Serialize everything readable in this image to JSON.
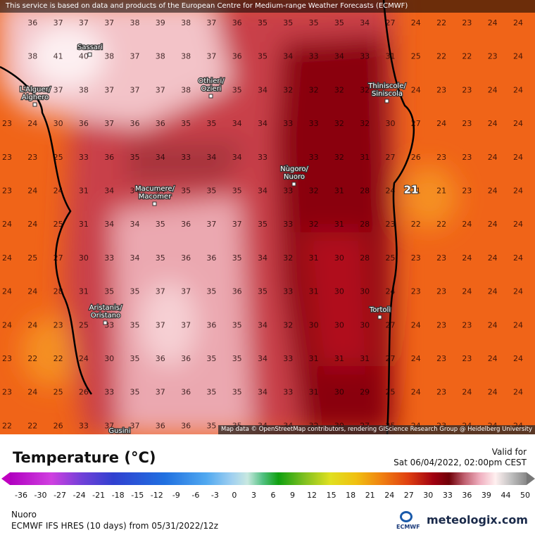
{
  "banner": "This service is based on data and products of the European Centre for Medium-range Weather Forecasts (ECMWF)",
  "attribution": "Map data © OpenStreetMap contributors, rendering GIScience Research Group @ Heidelberg University",
  "places": [
    {
      "lines": [
        "Sassari"
      ]
    },
    {
      "lines": [
        "L'Alguer/",
        "Alghero"
      ]
    },
    {
      "lines": [
        "Othieri/",
        "Ozieri"
      ]
    },
    {
      "lines": [
        "Macumere/",
        "Macomer"
      ]
    },
    {
      "lines": [
        "Nùgoro/",
        "Nuoro"
      ]
    },
    {
      "lines": [
        "Thiniscole/",
        "Siniscola"
      ]
    },
    {
      "lines": [
        "Aristanis/",
        "Oristano"
      ]
    },
    {
      "lines": [
        "Tortolì"
      ]
    },
    {
      "lines": [
        "Gusini"
      ]
    }
  ],
  "highlight": 21,
  "grid": [
    [
      null,
      36,
      37,
      37,
      37,
      38,
      39,
      38,
      37,
      36,
      35,
      35,
      35,
      35,
      34,
      27,
      24,
      22,
      23,
      24,
      24
    ],
    [
      null,
      38,
      41,
      40,
      38,
      37,
      38,
      38,
      37,
      36,
      35,
      34,
      33,
      34,
      33,
      31,
      25,
      22,
      22,
      23,
      24
    ],
    [
      null,
      37,
      37,
      38,
      37,
      37,
      37,
      38,
      null,
      35,
      34,
      32,
      32,
      32,
      32,
      null,
      24,
      23,
      23,
      24,
      24
    ],
    [
      23,
      24,
      30,
      36,
      37,
      36,
      36,
      35,
      35,
      34,
      34,
      33,
      33,
      32,
      32,
      30,
      27,
      24,
      23,
      24,
      24
    ],
    [
      23,
      23,
      25,
      33,
      36,
      35,
      34,
      33,
      34,
      34,
      33,
      null,
      33,
      32,
      31,
      27,
      26,
      23,
      23,
      24,
      24
    ],
    [
      23,
      24,
      24,
      31,
      34,
      34,
      34,
      35,
      35,
      35,
      34,
      33,
      32,
      31,
      28,
      24,
      21,
      21,
      23,
      24,
      24
    ],
    [
      24,
      24,
      25,
      31,
      34,
      34,
      35,
      36,
      37,
      37,
      35,
      33,
      32,
      31,
      28,
      23,
      22,
      22,
      24,
      24,
      24
    ],
    [
      24,
      25,
      27,
      30,
      33,
      34,
      35,
      36,
      36,
      35,
      34,
      32,
      31,
      30,
      28,
      25,
      23,
      23,
      24,
      24,
      24
    ],
    [
      24,
      24,
      28,
      31,
      35,
      35,
      37,
      37,
      35,
      36,
      35,
      33,
      31,
      30,
      30,
      24,
      23,
      23,
      24,
      24,
      24
    ],
    [
      24,
      24,
      23,
      25,
      33,
      35,
      37,
      37,
      36,
      35,
      34,
      32,
      30,
      30,
      30,
      27,
      24,
      23,
      23,
      24,
      24
    ],
    [
      23,
      22,
      22,
      24,
      30,
      35,
      36,
      36,
      35,
      35,
      34,
      33,
      31,
      31,
      31,
      27,
      24,
      23,
      23,
      24,
      24
    ],
    [
      23,
      24,
      25,
      26,
      33,
      35,
      37,
      36,
      35,
      35,
      34,
      33,
      31,
      30,
      29,
      25,
      24,
      23,
      24,
      24,
      24
    ],
    [
      22,
      22,
      26,
      33,
      37,
      37,
      36,
      36,
      35,
      35,
      34,
      34,
      32,
      30,
      27,
      25,
      24,
      23,
      24,
      24,
      24
    ]
  ],
  "legend": {
    "title": "Temperature (°C)",
    "ticks": [
      -36,
      -30,
      -27,
      -24,
      -21,
      -18,
      -15,
      -12,
      -9,
      -6,
      -3,
      0,
      3,
      6,
      9,
      12,
      15,
      18,
      21,
      24,
      27,
      30,
      33,
      36,
      39,
      44,
      50
    ]
  },
  "valid": {
    "label": "Valid for",
    "time": "Sat 06/04/2022, 02:00pm CEST"
  },
  "footer": {
    "location": "Nuoro",
    "model": "ECMWF IFS HRES (10 days) from 05/31/2022/12z",
    "ecmwf": "ECMWF",
    "brand": "meteologix.com"
  }
}
